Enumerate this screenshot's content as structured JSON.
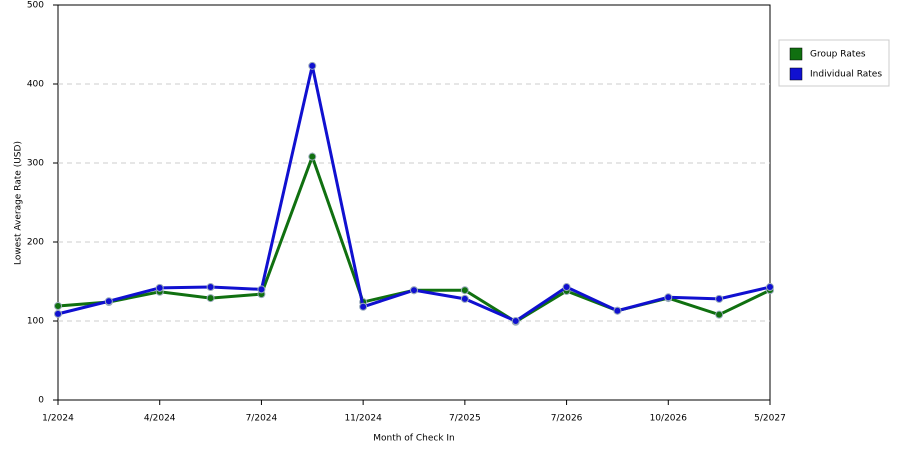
{
  "chart_data": {
    "type": "line",
    "x_label": "Month of Check In",
    "y_label": "Lowest Average Rate (USD)",
    "categories": [
      "1/2024",
      null,
      "4/2024",
      null,
      "7/2024",
      null,
      "11/2024",
      null,
      "7/2025",
      null,
      "7/2026",
      null,
      "10/2026",
      null,
      "5/2027"
    ],
    "series": [
      {
        "name": "Group Rates",
        "color": "#107010",
        "values": [
          119,
          124,
          137,
          129,
          134,
          308,
          124,
          139,
          139,
          99,
          138,
          113,
          129,
          108,
          139
        ]
      },
      {
        "name": "Individual Rates",
        "color": "#1010d0",
        "values": [
          109,
          125,
          142,
          143,
          140,
          423,
          118,
          139,
          128,
          100,
          143,
          113,
          130,
          128,
          143
        ]
      }
    ],
    "ylim": [
      0,
      500
    ],
    "yticks": [
      0,
      100,
      200,
      300,
      400,
      500
    ],
    "grid": true,
    "legend": "right"
  }
}
